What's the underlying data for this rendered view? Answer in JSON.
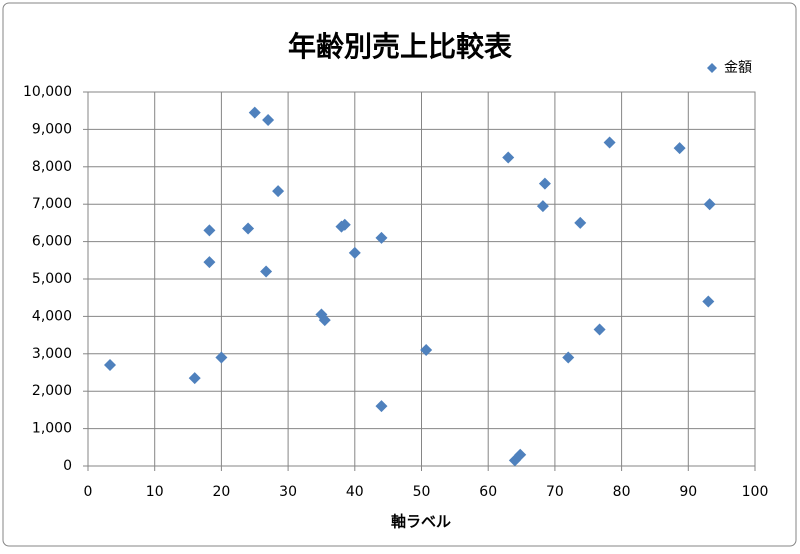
{
  "chart_data": {
    "type": "scatter",
    "title": "年齢別売上比較表",
    "x_label": "軸ラベル",
    "legend": "top-right",
    "grid": true,
    "xlim": [
      0,
      100
    ],
    "xticks": [
      0,
      10,
      20,
      30,
      40,
      50,
      60,
      70,
      80,
      90,
      100
    ],
    "ylim": [
      0,
      10000
    ],
    "yticks": [
      0,
      {
        "value": 1000,
        "label": "1,000"
      },
      {
        "value": 2000,
        "label": "2,000"
      },
      {
        "value": 3000,
        "label": "3,000"
      },
      {
        "value": 4000,
        "label": "4,000"
      },
      {
        "value": 5000,
        "label": "5,000"
      },
      {
        "value": 6000,
        "label": "6,000"
      },
      {
        "value": 7000,
        "label": "7,000"
      },
      {
        "value": 8000,
        "label": "8,000"
      },
      {
        "value": 9000,
        "label": "9,000"
      },
      {
        "value": 10000,
        "label": "10,000"
      }
    ],
    "series": [
      {
        "name": "金額",
        "color": "#4f81bd",
        "x": [
          3.3,
          16,
          18.2,
          18.2,
          20,
          24,
          25,
          26.7,
          27,
          28.5,
          35,
          35.5,
          38,
          38.5,
          40,
          44,
          44,
          50.7,
          63,
          64,
          64.8,
          68.2,
          68.5,
          72,
          73.8,
          76.7,
          78.2,
          88.7,
          93.2,
          93
        ],
        "values": [
          2700,
          2350,
          6300,
          5450,
          2900,
          6350,
          9450,
          5200,
          9250,
          7350,
          4050,
          3900,
          6400,
          6450,
          5700,
          1600,
          6100,
          3100,
          8250,
          150,
          300,
          6950,
          7550,
          2900,
          6500,
          3650,
          8650,
          8500,
          7000,
          4400
        ]
      }
    ]
  }
}
